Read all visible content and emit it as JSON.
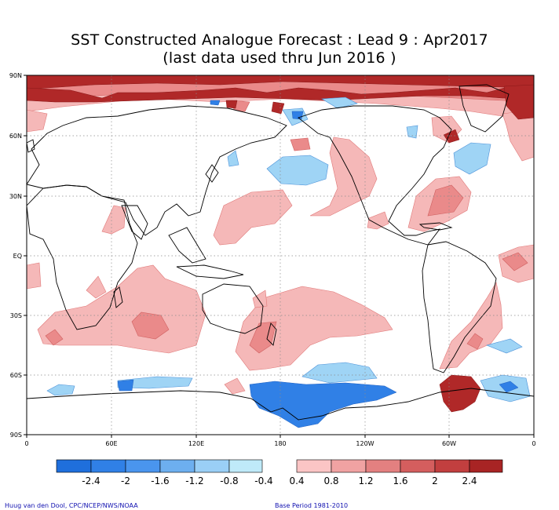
{
  "header": {
    "title_line1": "SST Constructed Analogue Forecast : Lead 9 : Apr2017",
    "title_line2": "(last data used thru Jun 2016 )"
  },
  "map": {
    "lat_labels": [
      "90N",
      "60N",
      "30N",
      "EQ",
      "30S",
      "60S",
      "90S"
    ],
    "lon_labels": [
      "0",
      "60E",
      "120E",
      "180",
      "120W",
      "60W",
      "0"
    ],
    "grid": "dotted",
    "colors": {
      "land_outline": "#000000",
      "warm_light": "#f5b8b8",
      "warm_mid": "#ea8a8a",
      "warm_strong": "#d04848",
      "warm_max": "#b02828",
      "cool_light": "#9fd4f5",
      "cool_mid": "#5aa8ea",
      "cool_strong": "#2a78d8"
    }
  },
  "colorbar": {
    "labels": [
      "-2.4",
      "-2",
      "-1.6",
      "-1.2",
      "-0.8",
      "-0.4",
      "0.4",
      "0.8",
      "1.2",
      "1.6",
      "2",
      "2.4"
    ],
    "cool_colors": [
      "#1f6fdc",
      "#3080e6",
      "#4a95ee",
      "#6dafef",
      "#9acff6",
      "#bfeaf9"
    ],
    "warm_colors": [
      "#fbc5c5",
      "#f0a2a2",
      "#e38080",
      "#d45e5e",
      "#c23f3f",
      "#a82424"
    ]
  },
  "footer": {
    "credit": "Huug van den Dool, CPC/NCEP/NWS/NOAA",
    "base_period": "Base Period 1981-2010"
  }
}
